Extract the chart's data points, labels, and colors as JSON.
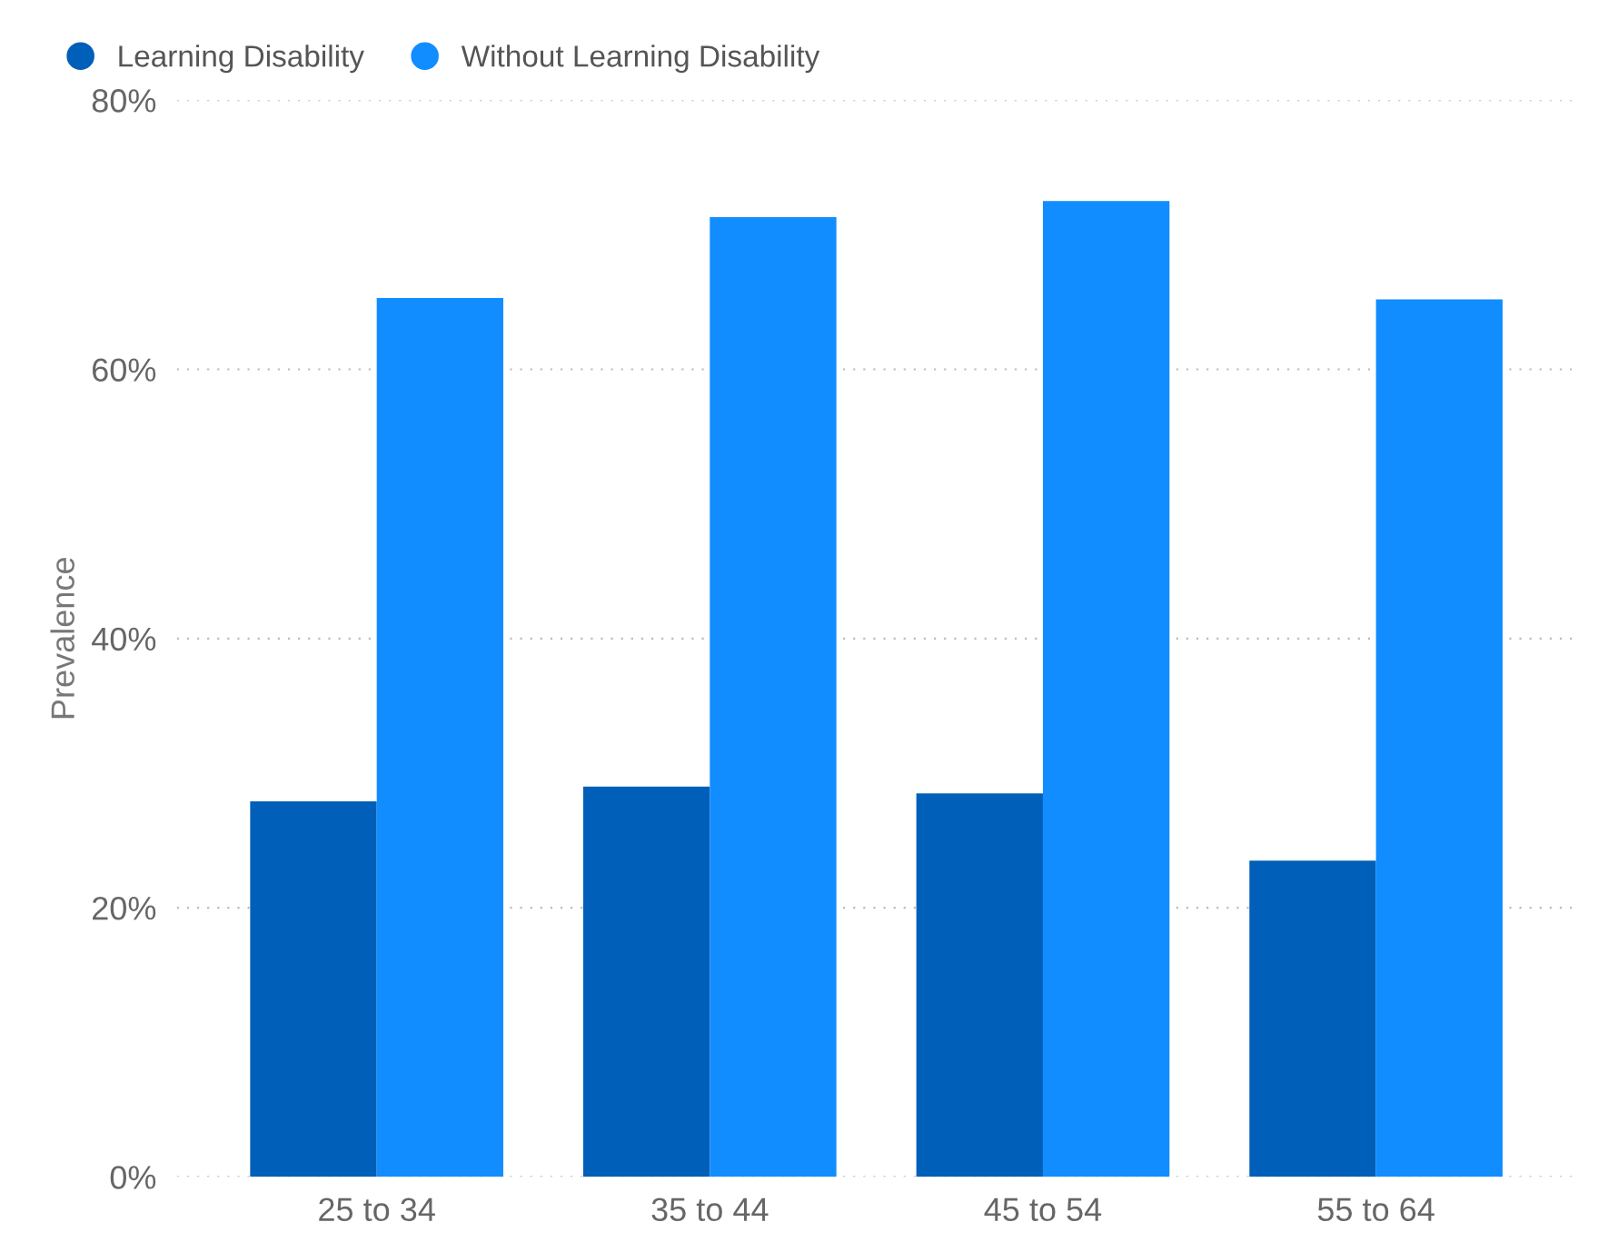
{
  "chart_data": {
    "type": "bar",
    "ylabel": "Prevalence",
    "categories": [
      "25 to 34",
      "35 to 44",
      "45 to 54",
      "55 to 64"
    ],
    "series": [
      {
        "name": "Learning Disability",
        "color": "#005fb8",
        "values": [
          27.9,
          29.0,
          28.5,
          23.5
        ]
      },
      {
        "name": "Without Learning Disability",
        "color": "#118dff",
        "values": [
          65.3,
          71.3,
          72.5,
          65.2
        ]
      }
    ],
    "ylim": [
      0,
      80
    ],
    "yticks": [
      {
        "value": 0,
        "label": "0%"
      },
      {
        "value": 20,
        "label": "20%"
      },
      {
        "value": 40,
        "label": "40%"
      },
      {
        "value": 60,
        "label": "60%"
      },
      {
        "value": 80,
        "label": "80%"
      }
    ],
    "grid": "y",
    "legend": "top left"
  }
}
